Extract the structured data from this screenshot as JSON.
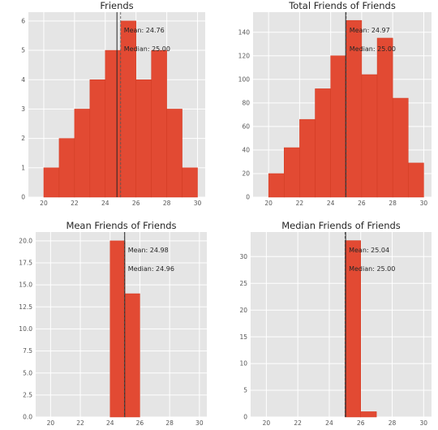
{
  "chart_data": [
    {
      "type": "bar",
      "title": "Friends",
      "xlabel": "",
      "ylabel": "",
      "xlim": [
        19,
        30.5
      ],
      "ylim": [
        0,
        6.3
      ],
      "xticks": [
        "20",
        "22",
        "24",
        "26",
        "28",
        "30"
      ],
      "yticks": [
        "0",
        "1",
        "2",
        "3",
        "4",
        "5",
        "6"
      ],
      "bin_edges": [
        20,
        21,
        22,
        23,
        24,
        25,
        26,
        27,
        28,
        29,
        30
      ],
      "counts": [
        1,
        2,
        3,
        4,
        5,
        6,
        4,
        5,
        3,
        1
      ],
      "mean": 24.76,
      "median": 25.0,
      "mean_label": "Mean: 24.76",
      "median_label": "Median: 25.00",
      "grid": true
    },
    {
      "type": "bar",
      "title": "Total Friends of Friends",
      "xlabel": "",
      "ylabel": "",
      "xlim": [
        19,
        30.5
      ],
      "ylim": [
        0,
        157
      ],
      "xticks": [
        "20",
        "22",
        "24",
        "26",
        "28",
        "30"
      ],
      "yticks": [
        "0",
        "20",
        "40",
        "60",
        "80",
        "100",
        "120",
        "140"
      ],
      "bin_edges": [
        20,
        21,
        22,
        23,
        24,
        25,
        26,
        27,
        28,
        29,
        30
      ],
      "counts": [
        20,
        42,
        66,
        92,
        120,
        150,
        104,
        135,
        84,
        29
      ],
      "mean": 24.97,
      "median": 25.0,
      "mean_label": "Mean: 24.97",
      "median_label": "Median: 25.00",
      "grid": true
    },
    {
      "type": "bar",
      "title": "Mean Friends of Friends",
      "xlabel": "",
      "ylabel": "",
      "xlim": [
        19,
        30.5
      ],
      "ylim": [
        0,
        21
      ],
      "xticks": [
        "20",
        "22",
        "24",
        "26",
        "28",
        "30"
      ],
      "yticks": [
        "0.0",
        "2.5",
        "5.0",
        "7.5",
        "10.0",
        "12.5",
        "15.0",
        "17.5",
        "20.0"
      ],
      "bin_edges": [
        24,
        25,
        26
      ],
      "counts": [
        20,
        14
      ],
      "mean": 24.98,
      "median": 24.96,
      "mean_label": "Mean: 24.98",
      "median_label": "Median: 24.96",
      "grid": true
    },
    {
      "type": "bar",
      "title": "Median Friends of Friends",
      "xlabel": "",
      "ylabel": "",
      "xlim": [
        19,
        30.5
      ],
      "ylim": [
        0,
        34.6
      ],
      "xticks": [
        "20",
        "22",
        "24",
        "26",
        "28",
        "30"
      ],
      "yticks": [
        "0",
        "5",
        "10",
        "15",
        "20",
        "25",
        "30"
      ],
      "bin_edges": [
        25,
        26,
        27
      ],
      "counts": [
        33,
        1
      ],
      "mean": 25.04,
      "median": 25.0,
      "mean_label": "Mean: 25.04",
      "median_label": "Median: 25.00",
      "grid": true
    }
  ],
  "colors": {
    "background": "#E5E5E5",
    "grid": "#FFFFFF",
    "bar": "#E24A33",
    "bar_edge": "#D03A22",
    "mean_line": "#262626",
    "median_line": "#555555"
  }
}
